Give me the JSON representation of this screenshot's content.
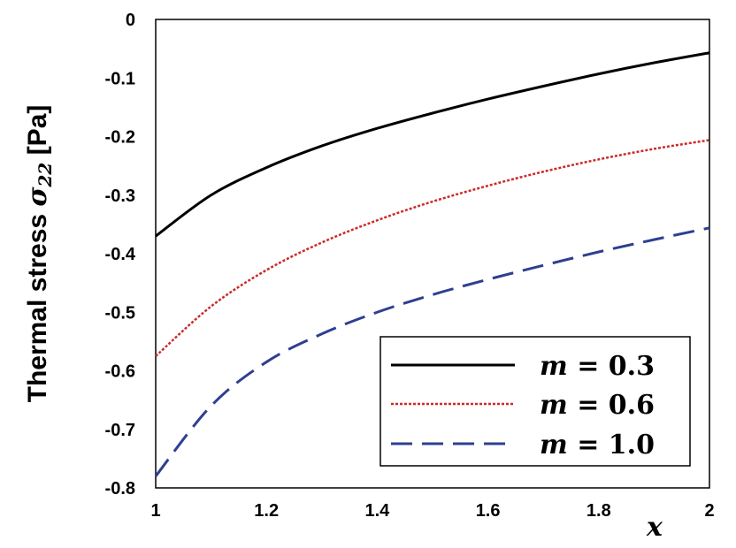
{
  "chart_data": {
    "type": "line",
    "title": "",
    "xlabel": "x",
    "ylabel": {
      "prefix": "Thermal stress ",
      "symbol": "σ",
      "subscript": "22",
      "unit": " [Pa]"
    },
    "xlim": [
      1,
      2
    ],
    "ylim": [
      -0.8,
      0
    ],
    "x_ticks": [
      "1",
      "1.2",
      "1.4",
      "1.6",
      "1.8",
      "2"
    ],
    "y_ticks": [
      "0",
      "-0.1",
      "-0.2",
      "-0.3",
      "-0.4",
      "-0.5",
      "-0.6",
      "-0.7",
      "-0.8"
    ],
    "grid": false,
    "legend_position": "bottom-right",
    "x": [
      1.0,
      1.1,
      1.2,
      1.3,
      1.4,
      1.5,
      1.6,
      1.7,
      1.8,
      1.9,
      2.0
    ],
    "series": [
      {
        "name": "m = 0.3",
        "legend": {
          "var": "m",
          "op": " = ",
          "value": "0.3"
        },
        "color": "#000000",
        "style": "solid",
        "values": [
          -0.37,
          -0.3,
          -0.253,
          -0.216,
          -0.186,
          -0.16,
          -0.136,
          -0.114,
          -0.093,
          -0.074,
          -0.057
        ]
      },
      {
        "name": "m = 0.6",
        "legend": {
          "var": "m",
          "op": " = ",
          "value": "0.6"
        },
        "color": "#cc2a2a",
        "style": "dotted",
        "values": [
          -0.575,
          -0.49,
          -0.428,
          -0.381,
          -0.343,
          -0.311,
          -0.284,
          -0.26,
          -0.239,
          -0.221,
          -0.206
        ]
      },
      {
        "name": "m = 1.0",
        "legend": {
          "var": "m",
          "op": " = ",
          "value": "1.0"
        },
        "color": "#2e3f91",
        "style": "dashed",
        "values": [
          -0.78,
          -0.66,
          -0.585,
          -0.537,
          -0.5,
          -0.47,
          -0.444,
          -0.42,
          -0.397,
          -0.376,
          -0.356
        ]
      }
    ]
  }
}
